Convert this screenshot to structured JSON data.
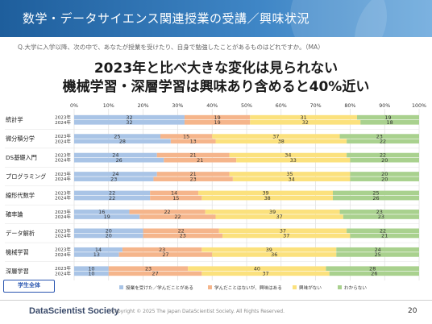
{
  "header": {
    "title": "数学・データサイエンス関連授業の受講／興味状況"
  },
  "question": "Q.大学に入学以降、次の中で、あなたが授業を受けたり、自身で勉強したことがあるものはどれですか。（MA）",
  "headline": {
    "line1": "2023年と比べ大きな変化は見られない",
    "line2": "機械学習・深層学習は興味あり含めると40%近い"
  },
  "highlight_label": "学生全体",
  "footer": {
    "brand": "DataScientist Society",
    "copyright": "Copyright © 2025 The Japan DataScientist Society. All Rights Reserved.",
    "page": "20"
  },
  "colors": {
    "header": "#2f72b4",
    "taken": "#a9c4e6",
    "interested": "#f5b58b",
    "not_interested": "#fbe17d",
    "unknown": "#a9d18e"
  },
  "chart_data": {
    "type": "bar",
    "orientation": "horizontal",
    "stacked": true,
    "percent_axis": true,
    "xlim": [
      0,
      100
    ],
    "x_ticks": [
      "0%",
      "10%",
      "20%",
      "30%",
      "40%",
      "50%",
      "60%",
      "70%",
      "80%",
      "90%",
      "100%"
    ],
    "grid": true,
    "legend_position": "bottom",
    "series": [
      {
        "name": "授業を受けた／学んだことがある",
        "color": "#a9c4e6"
      },
      {
        "name": "学んだことはないが、興味はある",
        "color": "#f5b58b"
      },
      {
        "name": "興味がない",
        "color": "#fbe17d"
      },
      {
        "name": "わからない",
        "color": "#a9d18e"
      }
    ],
    "categories": [
      {
        "name": "統計学",
        "rows": [
          {
            "year": "2023年",
            "values": [
              32,
              19,
              31,
              19
            ]
          },
          {
            "year": "2024年",
            "values": [
              32,
              19,
              32,
              18
            ]
          }
        ]
      },
      {
        "name": "微分積分学",
        "rows": [
          {
            "year": "2023年",
            "values": [
              25,
              15,
              37,
              23
            ]
          },
          {
            "year": "2024年",
            "values": [
              28,
              13,
              38,
              22
            ]
          }
        ]
      },
      {
        "name": "DS基礎入門",
        "rows": [
          {
            "year": "2023年",
            "values": [
              24,
              21,
              34,
              22
            ]
          },
          {
            "year": "2024年",
            "values": [
              26,
              21,
              33,
              20
            ]
          }
        ]
      },
      {
        "name": "プログラミング",
        "rows": [
          {
            "year": "2023年",
            "values": [
              24,
              21,
              35,
              20
            ]
          },
          {
            "year": "2024年",
            "values": [
              23,
              23,
              34,
              20
            ]
          }
        ]
      },
      {
        "name": "線形代数学",
        "rows": [
          {
            "year": "2023年",
            "values": [
              22,
              14,
              39,
              25
            ]
          },
          {
            "year": "2024年",
            "values": [
              22,
              15,
              38,
              26
            ]
          }
        ]
      },
      {
        "name": "確率論",
        "rows": [
          {
            "year": "2023年",
            "values": [
              16,
              22,
              39,
              23
            ]
          },
          {
            "year": "2024年",
            "values": [
              19,
              22,
              37,
              23
            ]
          }
        ]
      },
      {
        "name": "データ解析",
        "rows": [
          {
            "year": "2023年",
            "values": [
              20,
              22,
              37,
              22
            ]
          },
          {
            "year": "2024年",
            "values": [
              20,
              23,
              37,
              21
            ]
          }
        ]
      },
      {
        "name": "機械学習",
        "rows": [
          {
            "year": "2023年",
            "values": [
              14,
              23,
              39,
              24
            ]
          },
          {
            "year": "2024年",
            "values": [
              13,
              27,
              36,
              25
            ]
          }
        ]
      },
      {
        "name": "深層学習",
        "rows": [
          {
            "year": "2023年",
            "values": [
              10,
              23,
              40,
              28
            ]
          },
          {
            "year": "2024年",
            "values": [
              10,
              27,
              37,
              26
            ]
          }
        ]
      }
    ]
  }
}
